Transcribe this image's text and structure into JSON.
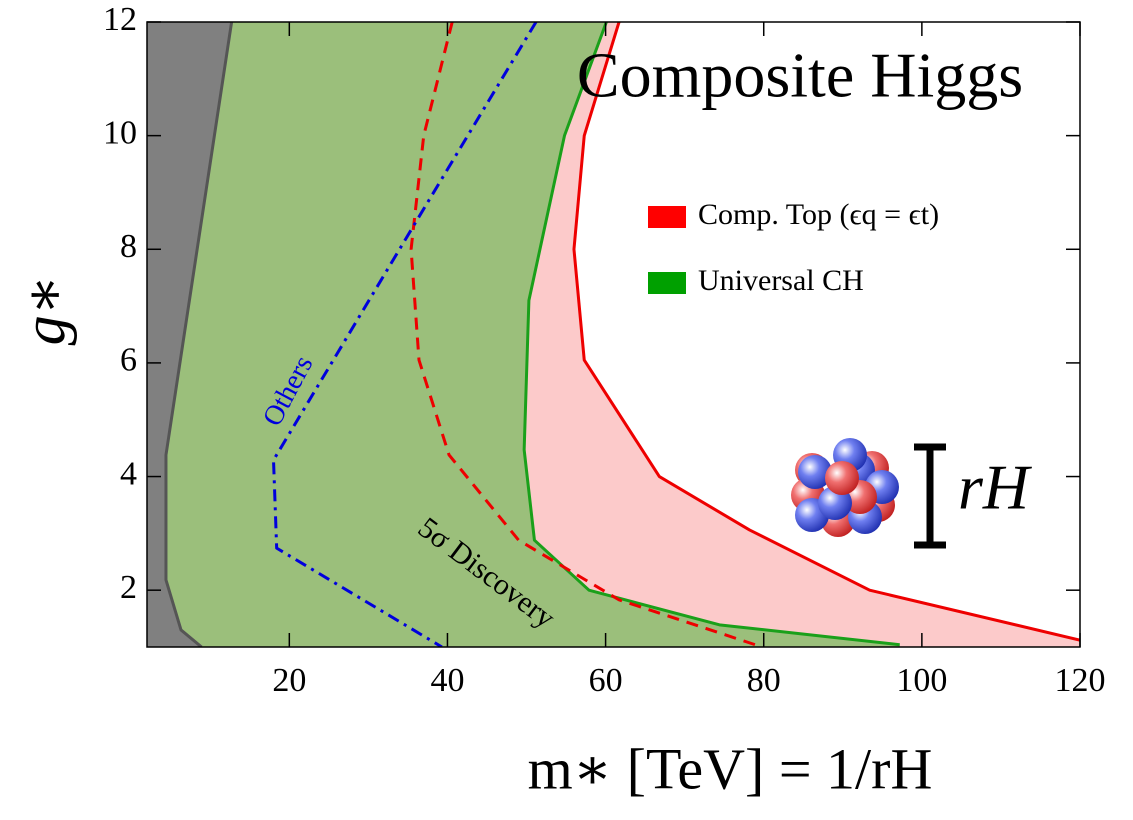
{
  "chart_data": {
    "type": "region",
    "title": "Composite Higgs",
    "x_label": "m∗ [TeV] = 1/rH",
    "y_label": "g∗",
    "xlim": [
      2,
      120
    ],
    "ylim": [
      1,
      12
    ],
    "xticks": [
      20,
      40,
      60,
      80,
      100,
      120
    ],
    "yticks": [
      2,
      4,
      6,
      8,
      10,
      12
    ],
    "curves": [
      {
        "x": [
          61.7,
          57.3,
          56,
          57.3,
          66.8,
          78.2,
          93.4,
          120
        ],
        "y": [
          12,
          10,
          8,
          6.05,
          4,
          3.06,
          2,
          1.12
        ],
        "color": "#ee0000",
        "dash": "solid",
        "fill": "#fccaca"
      },
      {
        "x": [
          60.1,
          54.8,
          50.3,
          49.7,
          51,
          57.9,
          74.4,
          97.2
        ],
        "y": [
          12,
          10,
          7.1,
          4.47,
          2.88,
          2,
          1.39,
          1.04
        ],
        "color": "#1aa01a",
        "dash": "solid",
        "fill": "#9bbf7b"
      },
      {
        "x": [
          12.7,
          4.4,
          4.4,
          6.3,
          8.9
        ],
        "y": [
          12,
          4.38,
          2.18,
          1.3,
          1
        ],
        "color": "#555555",
        "dash": "solid",
        "fill": "#808080"
      },
      {
        "x": [
          40.6,
          37,
          35.4,
          36.4,
          40.2,
          49,
          61.7,
          79.8
        ],
        "y": [
          12,
          10,
          8,
          6.05,
          4.38,
          2.88,
          1.83,
          1
        ],
        "color": "#ee0000",
        "dash": "dashed",
        "fill": null
      },
      {
        "x": [
          51.2,
          35.4,
          18,
          18.4,
          39.3
        ],
        "y": [
          12,
          8.34,
          4.29,
          2.74,
          1
        ],
        "color": "#0000dd",
        "dash": "dashdot",
        "fill": null
      }
    ],
    "legend": [
      {
        "label": "Comp. Top (ϵq = ϵt)",
        "color": "#ff0000"
      },
      {
        "label": "Universal CH",
        "color": "#00a000"
      }
    ],
    "annotations": {
      "others": "Others",
      "discovery": "5σ Discovery",
      "radius": "rH"
    }
  }
}
